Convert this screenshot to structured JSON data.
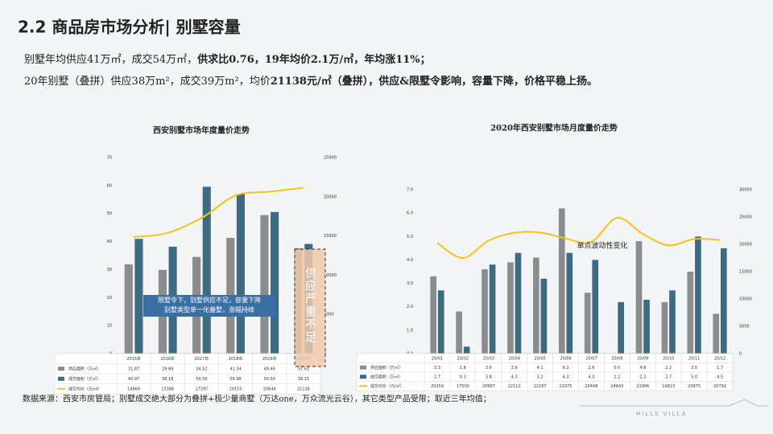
{
  "header": {
    "title": "2.2 商品房市场分析| 别墅容量",
    "line1": [
      "别墅年均供应41万㎡，成交54万㎡，",
      "供求比0.76，19年均价2.1万/㎡，年均涨11%；"
    ],
    "line2": [
      "20年别墅（叠拼）供应38万m²，成交39万m²，均价",
      "21138元/㎡（叠拼）",
      "，供应&限墅令影响，容量下降，价格平稳上扬。"
    ]
  },
  "footer": {
    "source": "数据来源：西安市房管局；别墅成交绝大部分为叠拼+极少量商墅（万达one，万众流光云谷），其它类型产品受限；取近三年均值；",
    "logo": "HILLS VILLA"
  },
  "chart_data": [
    {
      "type": "bar",
      "title": "西安别墅市场年度量价走势",
      "categories": [
        "2015年",
        "2016年",
        "2017年",
        "2018年",
        "2019年",
        "2020年"
      ],
      "series": [
        {
          "name": "供应面积（万㎡）",
          "type": "bar",
          "color": "#8c8c8c",
          "values": [
            31.87,
            29.89,
            34.52,
            41.34,
            49.46,
            37.63
          ]
        },
        {
          "name": "成交面积（万㎡）",
          "type": "bar",
          "color": "#3e6b82",
          "values": [
            40.97,
            38.18,
            59.56,
            56.98,
            50.56,
            39.15
          ]
        },
        {
          "name": "成交均价（元/㎡）",
          "type": "line",
          "axis": "y2",
          "color": "#f6c21a",
          "values": [
            14866,
            15386,
            17297,
            20155,
            20644,
            21138
          ]
        }
      ],
      "ylim": [
        0,
        70
      ],
      "yticks": [
        0,
        10,
        20,
        30,
        40,
        50,
        60,
        70
      ],
      "y2lim": [
        0,
        25000
      ],
      "y2ticks": [
        0,
        5000,
        10000,
        15000,
        20000,
        25000
      ],
      "grid": false,
      "annotations": [
        "限墅令下，别墅供应不足，容量下降",
        "别墅类型单一化叠墅，涨幅持续",
        "供应严重不足"
      ]
    },
    {
      "type": "bar",
      "title": "2020年西安别墅市场月度量价走势",
      "categories": [
        "20/01",
        "20/02",
        "20/03",
        "20/04",
        "20/05",
        "20/06",
        "20/07",
        "20/08",
        "20/09",
        "20/10",
        "20/11",
        "20/12"
      ],
      "series": [
        {
          "name": "供应面积（万㎡）",
          "type": "bar",
          "color": "#8c8c8c",
          "values": [
            3.3,
            1.8,
            3.6,
            3.9,
            4.1,
            6.2,
            2.6,
            0,
            4.8,
            2.2,
            3.5,
            1.7
          ],
          "value_labels": [
            "3.3",
            "1.8",
            "3.6",
            "3.9",
            "4.1",
            "6.2",
            "2.6",
            "0.0",
            "4.8",
            "2.2",
            "3.5",
            "1.7"
          ]
        },
        {
          "name": "成交面积（万㎡）",
          "type": "bar",
          "color": "#3e6b82",
          "values": [
            2.7,
            0.3,
            3.8,
            4.3,
            3.2,
            4.3,
            4,
            2.2,
            2.3,
            2.7,
            5,
            4.5
          ],
          "value_labels": [
            "2.7",
            "0.3",
            "3.8",
            "4.3",
            "3.2",
            "4.3",
            "4.0",
            "2.2",
            "2.3",
            "2.7",
            "5.0",
            "4.5"
          ]
        },
        {
          "name": "成交均价（元/㎡）",
          "type": "line",
          "axis": "y2",
          "color": "#f6c21a",
          "values": [
            20259,
            17500,
            20667,
            22111,
            22167,
            21075,
            20448,
            24843,
            21906,
            19813,
            20975,
            20792
          ]
        }
      ],
      "ylim": [
        0,
        7
      ],
      "yticks": [
        {
          "value": 0,
          "label": "0.0"
        },
        {
          "value": 1,
          "label": "1.0"
        },
        {
          "value": 2,
          "label": "2.0"
        },
        {
          "value": 3,
          "label": "3.0"
        },
        {
          "value": 4,
          "label": "4.0"
        },
        {
          "value": 5,
          "label": "5.0"
        },
        {
          "value": 6,
          "label": "6.0"
        },
        {
          "value": 7,
          "label": "7.0"
        }
      ],
      "y2lim": [
        0,
        30000
      ],
      "y2ticks": [
        0,
        5000,
        10000,
        15000,
        20000,
        25000,
        30000
      ],
      "grid": false,
      "annotations": [
        "单点波动性变化"
      ]
    }
  ]
}
